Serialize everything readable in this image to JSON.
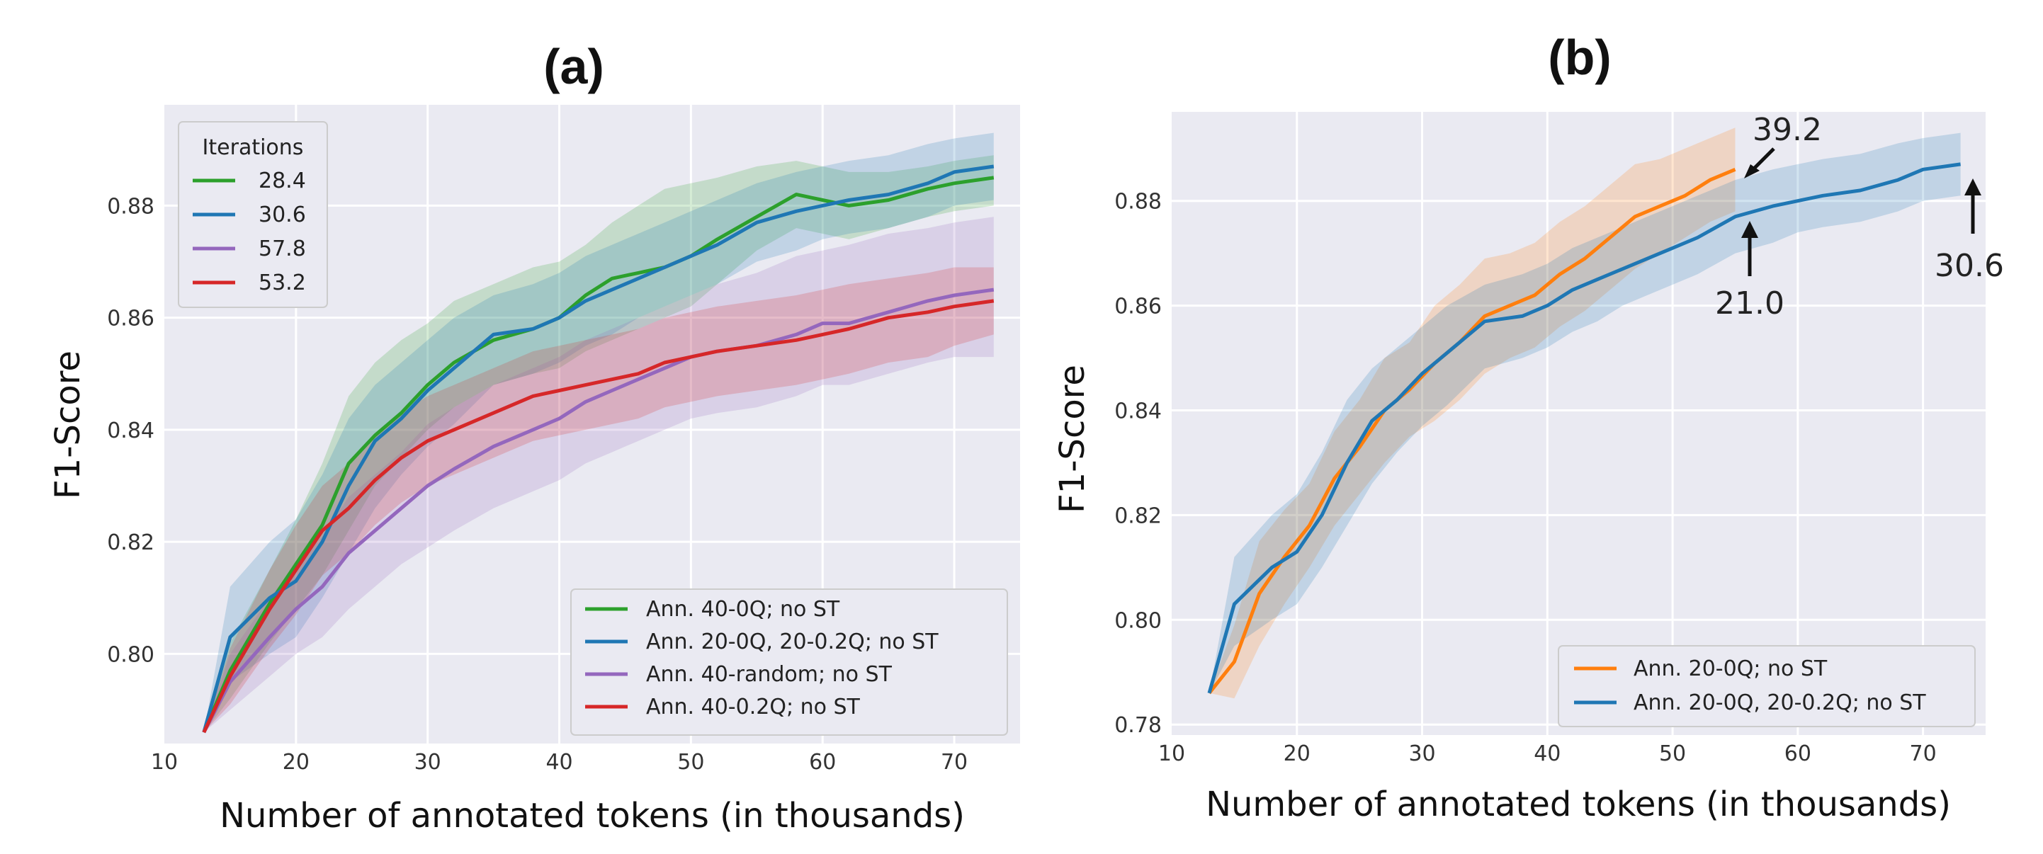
{
  "chart_data": [
    {
      "type": "line",
      "title": "(a)",
      "xlabel": "Number of annotated tokens (in thousands)",
      "ylabel": "F1-Score",
      "xlim": [
        10,
        75
      ],
      "ylim": [
        0.784,
        0.898
      ],
      "xticks": [
        10,
        20,
        30,
        40,
        50,
        60,
        70
      ],
      "yticks": [
        0.8,
        0.82,
        0.84,
        0.86,
        0.88
      ],
      "grid": true,
      "legend_placement": "bottom-right",
      "iterations_legend": {
        "title": "Iterations",
        "placement": "top-left",
        "entries": [
          "28.4",
          "30.6",
          "57.8",
          "53.2"
        ]
      },
      "series": [
        {
          "name": "Ann. 40-0Q; no ST",
          "color": "#2ca02c",
          "x": [
            13,
            15,
            18,
            20,
            22,
            24,
            26,
            28,
            30,
            32,
            35,
            38,
            40,
            42,
            44,
            46,
            48,
            50,
            52,
            55,
            58,
            60,
            62,
            65,
            68,
            70,
            73
          ],
          "y": [
            0.786,
            0.797,
            0.809,
            0.816,
            0.823,
            0.834,
            0.839,
            0.843,
            0.848,
            0.852,
            0.856,
            0.858,
            0.86,
            0.864,
            0.867,
            0.868,
            0.869,
            0.871,
            0.874,
            0.878,
            0.882,
            0.881,
            0.88,
            0.881,
            0.883,
            0.884,
            0.885
          ],
          "lower": [
            0.786,
            0.792,
            0.802,
            0.808,
            0.814,
            0.822,
            0.83,
            0.835,
            0.84,
            0.844,
            0.848,
            0.85,
            0.851,
            0.854,
            0.856,
            0.858,
            0.86,
            0.862,
            0.866,
            0.872,
            0.876,
            0.875,
            0.874,
            0.876,
            0.878,
            0.879,
            0.88
          ],
          "upper": [
            0.786,
            0.802,
            0.815,
            0.824,
            0.834,
            0.846,
            0.852,
            0.856,
            0.859,
            0.863,
            0.866,
            0.869,
            0.87,
            0.873,
            0.877,
            0.88,
            0.883,
            0.884,
            0.885,
            0.887,
            0.888,
            0.887,
            0.886,
            0.886,
            0.887,
            0.888,
            0.889
          ]
        },
        {
          "name": "Ann. 20-0Q, 20-0.2Q; no ST",
          "color": "#1f77b4",
          "x": [
            13,
            15,
            18,
            20,
            22,
            24,
            26,
            28,
            30,
            32,
            35,
            38,
            40,
            42,
            44,
            46,
            48,
            50,
            52,
            55,
            58,
            60,
            62,
            65,
            68,
            70,
            73
          ],
          "y": [
            0.786,
            0.803,
            0.81,
            0.813,
            0.82,
            0.83,
            0.838,
            0.842,
            0.847,
            0.851,
            0.857,
            0.858,
            0.86,
            0.863,
            0.865,
            0.867,
            0.869,
            0.871,
            0.873,
            0.877,
            0.879,
            0.88,
            0.881,
            0.882,
            0.884,
            0.886,
            0.887
          ],
          "lower": [
            0.786,
            0.795,
            0.8,
            0.803,
            0.81,
            0.818,
            0.826,
            0.832,
            0.837,
            0.841,
            0.848,
            0.85,
            0.852,
            0.855,
            0.857,
            0.86,
            0.862,
            0.864,
            0.866,
            0.87,
            0.872,
            0.874,
            0.875,
            0.876,
            0.878,
            0.88,
            0.881
          ],
          "upper": [
            0.786,
            0.812,
            0.82,
            0.824,
            0.832,
            0.842,
            0.848,
            0.852,
            0.856,
            0.86,
            0.864,
            0.866,
            0.868,
            0.871,
            0.873,
            0.875,
            0.877,
            0.879,
            0.881,
            0.884,
            0.886,
            0.887,
            0.888,
            0.889,
            0.891,
            0.892,
            0.893
          ]
        },
        {
          "name": "Ann. 40-random; no ST",
          "color": "#9467bd",
          "x": [
            13,
            15,
            18,
            20,
            22,
            24,
            26,
            28,
            30,
            32,
            35,
            38,
            40,
            42,
            44,
            46,
            48,
            50,
            52,
            55,
            58,
            60,
            62,
            65,
            68,
            70,
            73
          ],
          "y": [
            0.786,
            0.795,
            0.803,
            0.808,
            0.812,
            0.818,
            0.822,
            0.826,
            0.83,
            0.833,
            0.837,
            0.84,
            0.842,
            0.845,
            0.847,
            0.849,
            0.851,
            0.853,
            0.854,
            0.855,
            0.857,
            0.859,
            0.859,
            0.861,
            0.863,
            0.864,
            0.865
          ],
          "lower": [
            0.786,
            0.79,
            0.796,
            0.8,
            0.803,
            0.808,
            0.812,
            0.816,
            0.819,
            0.822,
            0.826,
            0.829,
            0.831,
            0.834,
            0.836,
            0.838,
            0.84,
            0.842,
            0.843,
            0.844,
            0.846,
            0.848,
            0.848,
            0.85,
            0.852,
            0.853,
            0.853
          ],
          "upper": [
            0.786,
            0.8,
            0.81,
            0.816,
            0.821,
            0.828,
            0.832,
            0.836,
            0.841,
            0.844,
            0.848,
            0.851,
            0.853,
            0.856,
            0.858,
            0.86,
            0.862,
            0.864,
            0.866,
            0.868,
            0.871,
            0.872,
            0.873,
            0.875,
            0.876,
            0.877,
            0.878
          ]
        },
        {
          "name": "Ann. 40-0.2Q; no ST",
          "color": "#d62728",
          "x": [
            13,
            15,
            18,
            20,
            22,
            24,
            26,
            28,
            30,
            32,
            35,
            38,
            40,
            42,
            44,
            46,
            48,
            50,
            52,
            55,
            58,
            60,
            62,
            65,
            68,
            70,
            73
          ],
          "y": [
            0.786,
            0.796,
            0.808,
            0.815,
            0.822,
            0.826,
            0.831,
            0.835,
            0.838,
            0.84,
            0.843,
            0.846,
            0.847,
            0.848,
            0.849,
            0.85,
            0.852,
            0.853,
            0.854,
            0.855,
            0.856,
            0.857,
            0.858,
            0.86,
            0.861,
            0.862,
            0.863
          ],
          "lower": [
            0.786,
            0.791,
            0.801,
            0.807,
            0.814,
            0.818,
            0.823,
            0.827,
            0.83,
            0.832,
            0.835,
            0.838,
            0.839,
            0.84,
            0.841,
            0.842,
            0.844,
            0.845,
            0.846,
            0.847,
            0.848,
            0.849,
            0.85,
            0.852,
            0.853,
            0.855,
            0.857
          ],
          "upper": [
            0.786,
            0.801,
            0.815,
            0.823,
            0.83,
            0.834,
            0.839,
            0.843,
            0.846,
            0.848,
            0.851,
            0.854,
            0.855,
            0.856,
            0.857,
            0.858,
            0.86,
            0.861,
            0.862,
            0.863,
            0.864,
            0.865,
            0.866,
            0.867,
            0.868,
            0.869,
            0.869
          ]
        }
      ]
    },
    {
      "type": "line",
      "title": "(b)",
      "xlabel": "Number of annotated tokens (in thousands)",
      "ylabel": "F1-Score",
      "xlim": [
        10,
        75
      ],
      "ylim": [
        0.778,
        0.897
      ],
      "xticks": [
        10,
        20,
        30,
        40,
        50,
        60,
        70
      ],
      "yticks": [
        0.78,
        0.8,
        0.82,
        0.84,
        0.86,
        0.88
      ],
      "grid": true,
      "legend_placement": "bottom-right",
      "series": [
        {
          "name": "Ann. 20-0Q; no ST",
          "color": "#ff7f0e",
          "x": [
            13,
            15,
            17,
            19,
            21,
            23,
            25,
            27,
            29,
            31,
            33,
            35,
            37,
            39,
            41,
            43,
            45,
            47,
            49,
            51,
            53,
            55
          ],
          "y": [
            0.786,
            0.792,
            0.805,
            0.812,
            0.818,
            0.827,
            0.833,
            0.84,
            0.844,
            0.849,
            0.853,
            0.858,
            0.86,
            0.862,
            0.866,
            0.869,
            0.873,
            0.877,
            0.879,
            0.881,
            0.884,
            0.886
          ],
          "lower": [
            0.786,
            0.785,
            0.795,
            0.803,
            0.81,
            0.818,
            0.824,
            0.83,
            0.835,
            0.838,
            0.842,
            0.847,
            0.85,
            0.852,
            0.856,
            0.859,
            0.863,
            0.867,
            0.87,
            0.873,
            0.876,
            0.878
          ],
          "upper": [
            0.786,
            0.799,
            0.815,
            0.821,
            0.826,
            0.836,
            0.842,
            0.85,
            0.853,
            0.86,
            0.864,
            0.869,
            0.87,
            0.872,
            0.876,
            0.879,
            0.883,
            0.887,
            0.888,
            0.89,
            0.892,
            0.894
          ]
        },
        {
          "name": "Ann. 20-0Q, 20-0.2Q; no ST",
          "color": "#1f77b4",
          "x": [
            13,
            15,
            18,
            20,
            22,
            24,
            26,
            28,
            30,
            32,
            35,
            38,
            40,
            42,
            44,
            46,
            48,
            50,
            52,
            55,
            58,
            60,
            62,
            65,
            68,
            70,
            73
          ],
          "y": [
            0.786,
            0.803,
            0.81,
            0.813,
            0.82,
            0.83,
            0.838,
            0.842,
            0.847,
            0.851,
            0.857,
            0.858,
            0.86,
            0.863,
            0.865,
            0.867,
            0.869,
            0.871,
            0.873,
            0.877,
            0.879,
            0.88,
            0.881,
            0.882,
            0.884,
            0.886,
            0.887
          ],
          "lower": [
            0.786,
            0.795,
            0.8,
            0.803,
            0.81,
            0.818,
            0.826,
            0.832,
            0.837,
            0.841,
            0.848,
            0.85,
            0.852,
            0.855,
            0.857,
            0.86,
            0.862,
            0.864,
            0.866,
            0.87,
            0.872,
            0.874,
            0.875,
            0.876,
            0.878,
            0.88,
            0.881
          ],
          "upper": [
            0.786,
            0.812,
            0.82,
            0.824,
            0.832,
            0.842,
            0.848,
            0.852,
            0.856,
            0.86,
            0.864,
            0.866,
            0.868,
            0.871,
            0.873,
            0.875,
            0.877,
            0.879,
            0.881,
            0.884,
            0.886,
            0.887,
            0.888,
            0.889,
            0.891,
            0.892,
            0.893
          ]
        }
      ],
      "annotations": [
        {
          "text": "39.2",
          "x": 55,
          "y": 0.886
        },
        {
          "text": "21.0",
          "x": 55,
          "y": 0.877
        },
        {
          "text": "30.6",
          "x": 73,
          "y": 0.887
        }
      ]
    }
  ]
}
